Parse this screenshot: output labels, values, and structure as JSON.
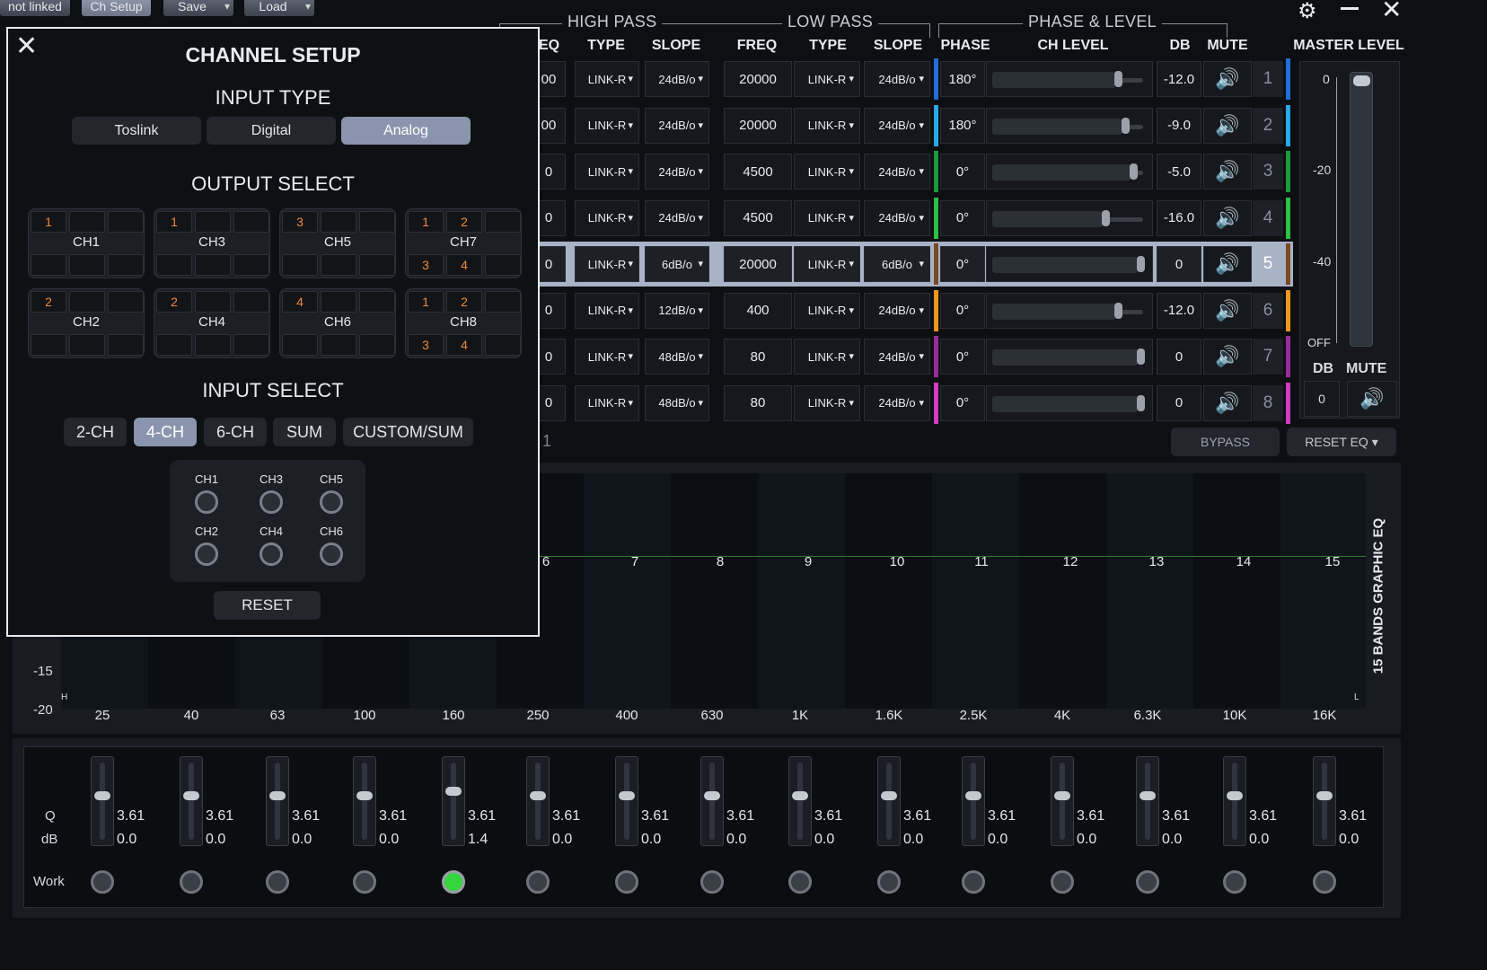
{
  "toolbar": {
    "link": "not linked",
    "ch_setup": "Ch Setup",
    "save": "Save",
    "load": "Load"
  },
  "window_icons": {
    "settings": "gear-icon",
    "minimize": "minimize-icon",
    "close": "close-icon"
  },
  "groups": {
    "high_pass": "HIGH PASS",
    "low_pass": "LOW PASS",
    "phase_level": "PHASE & LEVEL"
  },
  "columns": {
    "freq_partial": "EQ",
    "hp_type": "TYPE",
    "hp_slope": "SLOPE",
    "lp_freq": "FREQ",
    "lp_type": "TYPE",
    "lp_slope": "SLOPE",
    "phase": "PHASE",
    "ch_level": "CH LEVEL",
    "db": "DB",
    "mute": "MUTE",
    "master": "MASTER LEVEL"
  },
  "channels": [
    {
      "hp_freq": "00",
      "hp_type": "LINK-R",
      "hp_slope": "24dB/o",
      "lp_freq": "20000",
      "lp_type": "LINK-R",
      "lp_slope": "24dB/o",
      "phase": "180°",
      "level": 0.85,
      "db": "-12.0",
      "num": "1",
      "color": "#1f6fd6"
    },
    {
      "hp_freq": "00",
      "hp_type": "LINK-R",
      "hp_slope": "24dB/o",
      "lp_freq": "20000",
      "lp_type": "LINK-R",
      "lp_slope": "24dB/o",
      "phase": "180°",
      "level": 0.9,
      "db": "-9.0",
      "num": "2",
      "color": "#2aa7e8"
    },
    {
      "hp_freq": "0",
      "hp_type": "LINK-R",
      "hp_slope": "24dB/o",
      "lp_freq": "4500",
      "lp_type": "LINK-R",
      "lp_slope": "24dB/o",
      "phase": "0°",
      "level": 0.95,
      "db": "-5.0",
      "num": "3",
      "color": "#1a9a3a"
    },
    {
      "hp_freq": "0",
      "hp_type": "LINK-R",
      "hp_slope": "24dB/o",
      "lp_freq": "4500",
      "lp_type": "LINK-R",
      "lp_slope": "24dB/o",
      "phase": "0°",
      "level": 0.77,
      "db": "-16.0",
      "num": "4",
      "color": "#2bbf43"
    },
    {
      "hp_freq": "0",
      "hp_type": "LINK-R",
      "hp_slope": "6dB/o",
      "lp_freq": "20000",
      "lp_type": "LINK-R",
      "lp_slope": "6dB/o",
      "phase": "0°",
      "level": 1.0,
      "db": "0",
      "num": "5",
      "color": "#7a4a25"
    },
    {
      "hp_freq": "0",
      "hp_type": "LINK-R",
      "hp_slope": "12dB/o",
      "lp_freq": "400",
      "lp_type": "LINK-R",
      "lp_slope": "24dB/o",
      "phase": "0°",
      "level": 0.85,
      "db": "-12.0",
      "num": "6",
      "color": "#f0961e"
    },
    {
      "hp_freq": "0",
      "hp_type": "LINK-R",
      "hp_slope": "48dB/o",
      "lp_freq": "80",
      "lp_type": "LINK-R",
      "lp_slope": "24dB/o",
      "phase": "0°",
      "level": 1.0,
      "db": "0",
      "num": "7",
      "color": "#9a2a9a"
    },
    {
      "hp_freq": "0",
      "hp_type": "LINK-R",
      "hp_slope": "48dB/o",
      "lp_freq": "80",
      "lp_type": "LINK-R",
      "lp_slope": "24dB/o",
      "phase": "0°",
      "level": 1.0,
      "db": "0",
      "num": "8",
      "color": "#d43ac4"
    }
  ],
  "master": {
    "scale": [
      "0",
      "-20",
      "-40",
      "OFF"
    ],
    "db_label": "DB",
    "mute_label": "MUTE",
    "db_value": "0"
  },
  "eq_controls": {
    "partial": "1",
    "bypass": "BYPASS",
    "reset": "RESET EQ ▾",
    "side_title": "15 BANDS GRAPHIC EQ"
  },
  "eq_graph": {
    "band_numbers": [
      "6",
      "7",
      "8",
      "9",
      "10",
      "11",
      "12",
      "13",
      "14",
      "15"
    ],
    "y_labels": [
      "-15",
      "-20"
    ],
    "corner_left": "H",
    "corner_right": "L",
    "freqs": [
      "25",
      "40",
      "63",
      "100",
      "160",
      "250",
      "400",
      "630",
      "1K",
      "1.6K",
      "2.5K",
      "4K",
      "6.3K",
      "10K",
      "16K"
    ]
  },
  "eq_bands": {
    "row_labels": {
      "q": "Q",
      "db": "dB",
      "work": "Work"
    },
    "bands": [
      {
        "q": "3.61",
        "db": "0.0",
        "on": false
      },
      {
        "q": "3.61",
        "db": "0.0",
        "on": false
      },
      {
        "q": "3.61",
        "db": "0.0",
        "on": false
      },
      {
        "q": "3.61",
        "db": "0.0",
        "on": false
      },
      {
        "q": "3.61",
        "db": "1.4",
        "on": true
      },
      {
        "q": "3.61",
        "db": "0.0",
        "on": false
      },
      {
        "q": "3.61",
        "db": "0.0",
        "on": false
      },
      {
        "q": "3.61",
        "db": "0.0",
        "on": false
      },
      {
        "q": "3.61",
        "db": "0.0",
        "on": false
      },
      {
        "q": "3.61",
        "db": "0.0",
        "on": false
      },
      {
        "q": "3.61",
        "db": "0.0",
        "on": false
      },
      {
        "q": "3.61",
        "db": "0.0",
        "on": false
      },
      {
        "q": "3.61",
        "db": "0.0",
        "on": false
      },
      {
        "q": "3.61",
        "db": "0.0",
        "on": false
      },
      {
        "q": "3.61",
        "db": "0.0",
        "on": false
      }
    ]
  },
  "modal": {
    "title": "CHANNEL SETUP",
    "input_type_title": "INPUT TYPE",
    "input_types": [
      "Toslink",
      "Digital",
      "Analog"
    ],
    "input_type_selected": "Analog",
    "output_title": "OUTPUT SELECT",
    "outputs": [
      {
        "name": "CH1",
        "top": [
          "1",
          "",
          ""
        ],
        "bottom": [
          "",
          "",
          ""
        ]
      },
      {
        "name": "CH3",
        "top": [
          "1",
          "",
          ""
        ],
        "bottom": [
          "",
          "",
          ""
        ]
      },
      {
        "name": "CH5",
        "top": [
          "3",
          "",
          ""
        ],
        "bottom": [
          "",
          "",
          ""
        ]
      },
      {
        "name": "CH7",
        "top": [
          "1",
          "2",
          ""
        ],
        "bottom": [
          "3",
          "4",
          ""
        ]
      },
      {
        "name": "CH2",
        "top": [
          "2",
          "",
          ""
        ],
        "bottom": [
          "",
          "",
          ""
        ]
      },
      {
        "name": "CH4",
        "top": [
          "2",
          "",
          ""
        ],
        "bottom": [
          "",
          "",
          ""
        ]
      },
      {
        "name": "CH6",
        "top": [
          "4",
          "",
          ""
        ],
        "bottom": [
          "",
          "",
          ""
        ]
      },
      {
        "name": "CH8",
        "top": [
          "1",
          "2",
          ""
        ],
        "bottom": [
          "3",
          "4",
          ""
        ]
      }
    ],
    "input_select_title": "INPUT SELECT",
    "input_modes": [
      "2-CH",
      "4-CH",
      "6-CH",
      "SUM",
      "CUSTOM/SUM"
    ],
    "input_mode_selected": "4-CH",
    "input_channels": [
      "CH1",
      "CH3",
      "CH5",
      "CH2",
      "CH4",
      "CH6"
    ],
    "reset": "RESET"
  }
}
